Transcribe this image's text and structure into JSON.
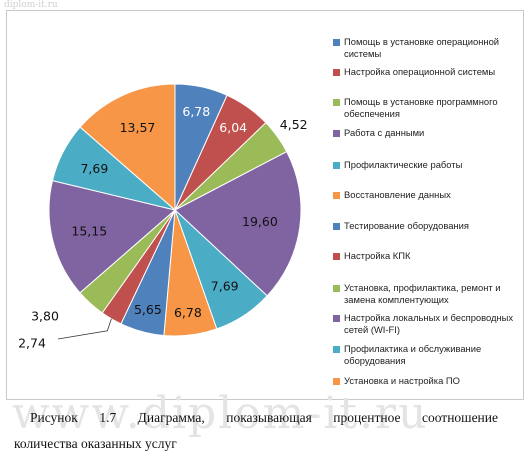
{
  "watermark_top": "diplom-it.ru",
  "watermark_main": "www.diplom-it.ru",
  "caption": {
    "line1": "Рисунок 1.7   Диаграмма, показывающая процентное соотношение",
    "line2": "количества оказанных услуг"
  },
  "chart_data": {
    "type": "pie",
    "title": "",
    "legend_position": "right",
    "categories": [
      "Помощь в установке операционной системы",
      "Настройка операционной системы",
      "Помощь в установке программного обеспечения",
      "Работа с данными",
      "Профилактические работы",
      "Восстановление данных",
      "Тестирование оборудования",
      "Настройка КПК",
      "Установка, профилактика, ремонт и замена комплентующих",
      "Настройка локальных и беспроводных сетей (WI-FI)",
      "Профилактика и обслуживание оборудования",
      "Установка и настройка ПО"
    ],
    "values": [
      6.78,
      6.04,
      4.52,
      19.6,
      7.69,
      6.78,
      5.65,
      2.74,
      3.8,
      15.15,
      7.69,
      13.57
    ],
    "value_labels": [
      "6,78",
      "6,04",
      "4,52",
      "19,60",
      "7,69",
      "6,78",
      "5,65",
      "2,74",
      "3,80",
      "15,15",
      "7,69",
      "13,57"
    ],
    "colors": [
      "#4f81bd",
      "#c0504d",
      "#9bbb59",
      "#8064a2",
      "#4bacc6",
      "#f79646",
      "#4f81bd",
      "#c0504d",
      "#9bbb59",
      "#8064a2",
      "#4bacc6",
      "#f79646"
    ]
  }
}
